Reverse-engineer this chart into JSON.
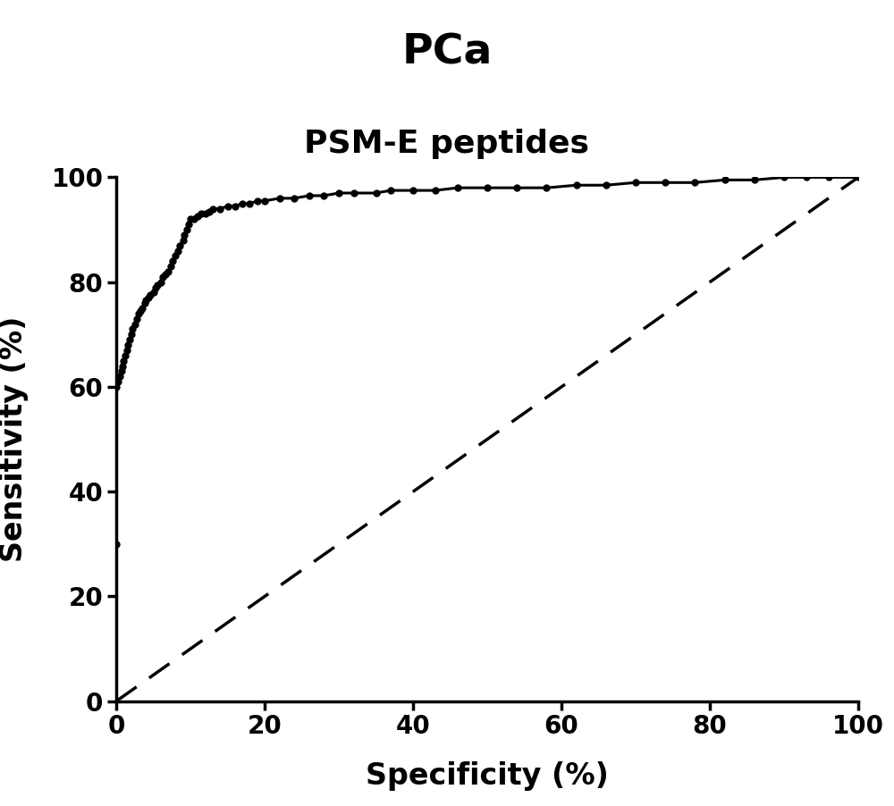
{
  "title": "PCa",
  "subtitle": "PSM-E peptides",
  "xlabel": "Specificity (%)",
  "ylabel": "Sensitivity (%)",
  "title_fontsize": 34,
  "subtitle_fontsize": 26,
  "label_fontsize": 24,
  "tick_fontsize": 20,
  "background_color": "#ffffff",
  "roc_color": "#000000",
  "diagonal_color": "#000000",
  "xlim": [
    0,
    100
  ],
  "ylim": [
    0,
    100
  ],
  "xticks": [
    0,
    20,
    40,
    60,
    80,
    100
  ],
  "yticks": [
    0,
    20,
    40,
    60,
    80,
    100
  ],
  "roc_points": [
    [
      0,
      0
    ],
    [
      0,
      30
    ],
    [
      0,
      60
    ],
    [
      0.3,
      61
    ],
    [
      0.5,
      62
    ],
    [
      0.7,
      63
    ],
    [
      0.9,
      64
    ],
    [
      1.0,
      65
    ],
    [
      1.2,
      66
    ],
    [
      1.4,
      67
    ],
    [
      1.6,
      68
    ],
    [
      1.8,
      69
    ],
    [
      2.0,
      70
    ],
    [
      2.2,
      71
    ],
    [
      2.5,
      72
    ],
    [
      2.8,
      73
    ],
    [
      3.0,
      74
    ],
    [
      3.3,
      74.5
    ],
    [
      3.5,
      75
    ],
    [
      3.8,
      76
    ],
    [
      4.0,
      76.5
    ],
    [
      4.3,
      77
    ],
    [
      4.6,
      77.5
    ],
    [
      5.0,
      78
    ],
    [
      5.3,
      79
    ],
    [
      5.6,
      79.5
    ],
    [
      6.0,
      80
    ],
    [
      6.3,
      81
    ],
    [
      6.6,
      81.5
    ],
    [
      7.0,
      82
    ],
    [
      7.3,
      83
    ],
    [
      7.6,
      84
    ],
    [
      8.0,
      85
    ],
    [
      8.3,
      86
    ],
    [
      8.6,
      87
    ],
    [
      9.0,
      88
    ],
    [
      9.2,
      89
    ],
    [
      9.5,
      90
    ],
    [
      9.7,
      91
    ],
    [
      10.0,
      92
    ],
    [
      10.5,
      92
    ],
    [
      11.0,
      92.5
    ],
    [
      11.5,
      93
    ],
    [
      12.0,
      93
    ],
    [
      12.5,
      93.5
    ],
    [
      13.0,
      94
    ],
    [
      14.0,
      94
    ],
    [
      15.0,
      94.5
    ],
    [
      16.0,
      94.5
    ],
    [
      17.0,
      95
    ],
    [
      18.0,
      95
    ],
    [
      19.0,
      95.5
    ],
    [
      20.0,
      95.5
    ],
    [
      22.0,
      96
    ],
    [
      24.0,
      96
    ],
    [
      26.0,
      96.5
    ],
    [
      28.0,
      96.5
    ],
    [
      30.0,
      97
    ],
    [
      32.0,
      97
    ],
    [
      35.0,
      97
    ],
    [
      37.0,
      97.5
    ],
    [
      40.0,
      97.5
    ],
    [
      43.0,
      97.5
    ],
    [
      46.0,
      98
    ],
    [
      50.0,
      98
    ],
    [
      54.0,
      98
    ],
    [
      58.0,
      98
    ],
    [
      62.0,
      98.5
    ],
    [
      66.0,
      98.5
    ],
    [
      70.0,
      99
    ],
    [
      74.0,
      99
    ],
    [
      78.0,
      99
    ],
    [
      82.0,
      99.5
    ],
    [
      86.0,
      99.5
    ],
    [
      90.0,
      100
    ],
    [
      93.0,
      100
    ],
    [
      96.0,
      100
    ],
    [
      100.0,
      100
    ]
  ]
}
